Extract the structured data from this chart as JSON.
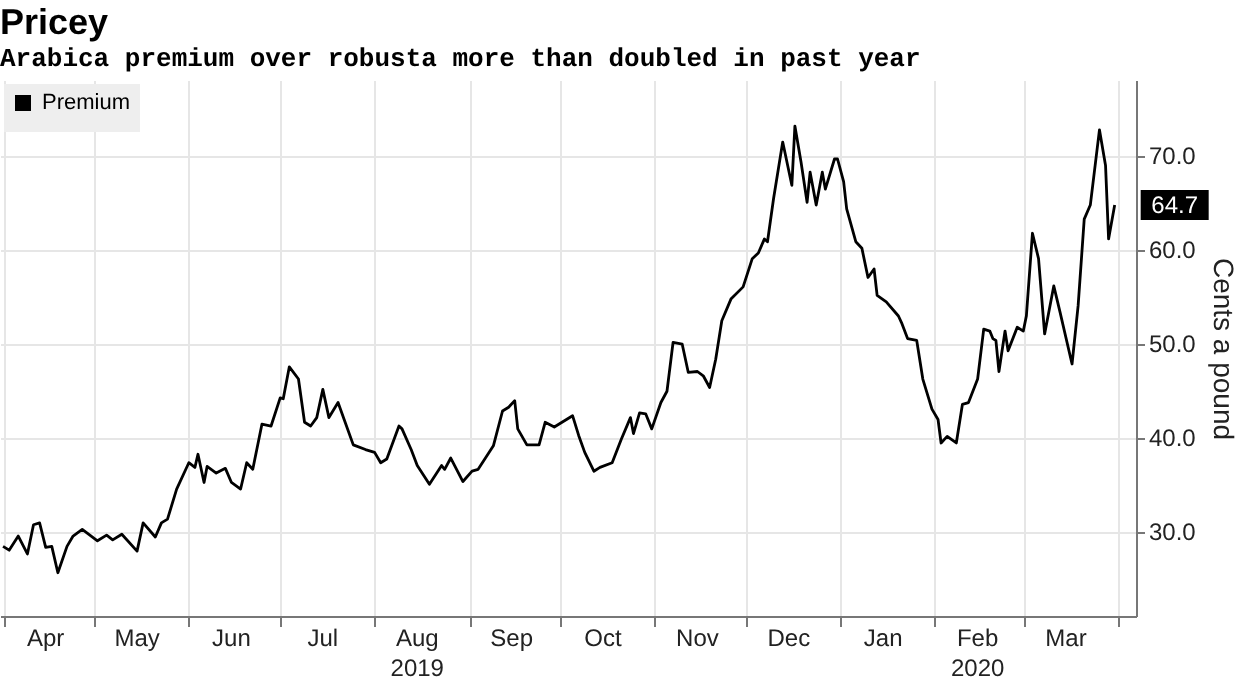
{
  "chart_data": {
    "type": "line",
    "title": "Pricey",
    "subtitle": "Arabica premium over robusta more than doubled in past year",
    "ylabel": "Cents a pound",
    "x": [
      "2019-04-01",
      "2019-04-03",
      "2019-04-06",
      "2019-04-09",
      "2019-04-11",
      "2019-04-13",
      "2019-04-15",
      "2019-04-17",
      "2019-04-19",
      "2019-04-22",
      "2019-04-24",
      "2019-04-27",
      "2019-05-02",
      "2019-05-05",
      "2019-05-07",
      "2019-05-10",
      "2019-05-15",
      "2019-05-17",
      "2019-05-21",
      "2019-05-23",
      "2019-05-25",
      "2019-05-28",
      "2019-06-01",
      "2019-06-03",
      "2019-06-04",
      "2019-06-06",
      "2019-06-07",
      "2019-06-10",
      "2019-06-13",
      "2019-06-15",
      "2019-06-18",
      "2019-06-20",
      "2019-06-22",
      "2019-06-25",
      "2019-06-28",
      "2019-07-01",
      "2019-07-02",
      "2019-07-04",
      "2019-07-07",
      "2019-07-09",
      "2019-07-11",
      "2019-07-13",
      "2019-07-15",
      "2019-07-17",
      "2019-07-20",
      "2019-07-22",
      "2019-07-25",
      "2019-07-29",
      "2019-08-01",
      "2019-08-03",
      "2019-08-05",
      "2019-08-09",
      "2019-08-10",
      "2019-08-13",
      "2019-08-15",
      "2019-08-19",
      "2019-08-23",
      "2019-08-24",
      "2019-08-26",
      "2019-08-30",
      "2019-09-02",
      "2019-09-04",
      "2019-09-09",
      "2019-09-12",
      "2019-09-14",
      "2019-09-16",
      "2019-09-17",
      "2019-09-20",
      "2019-09-24",
      "2019-09-26",
      "2019-09-29",
      "2019-10-03",
      "2019-10-05",
      "2019-10-07",
      "2019-10-09",
      "2019-10-12",
      "2019-10-14",
      "2019-10-18",
      "2019-10-21",
      "2019-10-24",
      "2019-10-25",
      "2019-10-27",
      "2019-10-29",
      "2019-10-31",
      "2019-11-03",
      "2019-11-05",
      "2019-11-07",
      "2019-11-10",
      "2019-11-12",
      "2019-11-15",
      "2019-11-17",
      "2019-11-19",
      "2019-11-21",
      "2019-11-23",
      "2019-11-26",
      "2019-11-30",
      "2019-12-03",
      "2019-12-05",
      "2019-12-07",
      "2019-12-08",
      "2019-12-10",
      "2019-12-13",
      "2019-12-16",
      "2019-12-17",
      "2019-12-19",
      "2019-12-21",
      "2019-12-22",
      "2019-12-24",
      "2019-12-26",
      "2019-12-27",
      "2019-12-30",
      "2019-12-31",
      "2020-01-02",
      "2020-01-03",
      "2020-01-06",
      "2020-01-08",
      "2020-01-10",
      "2020-01-12",
      "2020-01-13",
      "2020-01-16",
      "2020-01-20",
      "2020-01-21",
      "2020-01-23",
      "2020-01-26",
      "2020-01-28",
      "2020-01-31",
      "2020-02-02",
      "2020-02-03",
      "2020-02-05",
      "2020-02-08",
      "2020-02-10",
      "2020-02-12",
      "2020-02-15",
      "2020-02-17",
      "2020-02-19",
      "2020-02-20",
      "2020-02-21",
      "2020-02-22",
      "2020-02-24",
      "2020-02-25",
      "2020-02-28",
      "2020-03-01",
      "2020-03-02",
      "2020-03-04",
      "2020-03-06",
      "2020-03-08",
      "2020-03-11",
      "2020-03-13",
      "2020-03-17",
      "2020-03-19",
      "2020-03-21",
      "2020-03-23",
      "2020-03-26",
      "2020-03-28",
      "2020-03-29",
      "2020-03-31"
    ],
    "series": [
      {
        "name": "Premium",
        "color": "#000000",
        "values": [
          28.4,
          28.0,
          29.5,
          27.6,
          30.7,
          30.9,
          28.3,
          28.4,
          25.6,
          28.4,
          29.5,
          30.2,
          29.0,
          29.6,
          29.1,
          29.7,
          27.9,
          30.9,
          29.4,
          30.9,
          31.3,
          34.5,
          37.3,
          36.8,
          38.2,
          35.2,
          36.9,
          36.2,
          36.7,
          35.2,
          34.5,
          37.3,
          36.6,
          41.4,
          41.2,
          44.2,
          44.1,
          47.5,
          46.2,
          41.6,
          41.2,
          42.1,
          45.1,
          42.1,
          43.7,
          41.9,
          39.2,
          38.7,
          38.4,
          37.3,
          37.7,
          41.2,
          40.9,
          38.7,
          37.0,
          35.0,
          37.0,
          36.6,
          37.8,
          35.3,
          36.4,
          36.6,
          39.1,
          42.8,
          43.2,
          43.9,
          40.9,
          39.2,
          39.2,
          41.6,
          41.1,
          41.9,
          42.3,
          40.2,
          38.4,
          36.4,
          36.8,
          37.3,
          39.8,
          42.1,
          40.4,
          42.6,
          42.5,
          40.9,
          43.7,
          44.9,
          50.1,
          49.9,
          46.9,
          47.0,
          46.5,
          45.3,
          48.3,
          52.4,
          54.7,
          56.0,
          59.0,
          59.6,
          61.1,
          60.8,
          65.4,
          71.4,
          66.8,
          73.1,
          69.3,
          65.0,
          68.2,
          64.7,
          68.2,
          66.4,
          69.6,
          69.6,
          67.2,
          64.3,
          60.8,
          60.1,
          57.0,
          57.9,
          55.1,
          54.4,
          52.9,
          52.2,
          50.5,
          50.3,
          46.2,
          43.0,
          41.9,
          39.4,
          40.1,
          39.4,
          43.5,
          43.7,
          46.2,
          51.5,
          51.3,
          50.5,
          50.3,
          47.0,
          51.3,
          49.2,
          51.7,
          51.3,
          52.9,
          61.7,
          59.0,
          51.0,
          56.1,
          53.4,
          47.8,
          54.0,
          63.2,
          64.7,
          72.7,
          68.9,
          61.1,
          64.7
        ]
      }
    ],
    "xlim": [
      "2019-03-31",
      "2020-04-07"
    ],
    "xticks": [
      {
        "value": "2019-04-01",
        "label": null
      },
      {
        "value": "2019-04-15",
        "label": "Apr"
      },
      {
        "value": "2019-05-01",
        "label": null
      },
      {
        "value": "2019-05-15",
        "label": "May"
      },
      {
        "value": "2019-06-01",
        "label": null
      },
      {
        "value": "2019-06-15",
        "label": "Jun"
      },
      {
        "value": "2019-07-01",
        "label": null
      },
      {
        "value": "2019-07-15",
        "label": "Jul"
      },
      {
        "value": "2019-08-01",
        "label": null
      },
      {
        "value": "2019-08-15",
        "label": "Aug\n2019"
      },
      {
        "value": "2019-09-01",
        "label": null
      },
      {
        "value": "2019-09-15",
        "label": "Sep"
      },
      {
        "value": "2019-10-01",
        "label": null
      },
      {
        "value": "2019-10-15",
        "label": "Oct"
      },
      {
        "value": "2019-11-01",
        "label": null
      },
      {
        "value": "2019-11-15",
        "label": "Nov"
      },
      {
        "value": "2019-12-01",
        "label": null
      },
      {
        "value": "2019-12-15",
        "label": "Dec"
      },
      {
        "value": "2020-01-01",
        "label": null
      },
      {
        "value": "2020-01-15",
        "label": "Jan"
      },
      {
        "value": "2020-02-01",
        "label": null
      },
      {
        "value": "2020-02-15",
        "label": "Feb\n2020"
      },
      {
        "value": "2020-03-01",
        "label": null
      },
      {
        "value": "2020-03-15",
        "label": "Mar"
      },
      {
        "value": "2020-04-01",
        "label": null
      }
    ],
    "ylim": [
      21,
      78
    ],
    "yticks": [
      {
        "value": 30,
        "label": "30.0"
      },
      {
        "value": 40,
        "label": "40.0"
      },
      {
        "value": 50,
        "label": "50.0"
      },
      {
        "value": 60,
        "label": "60.0"
      },
      {
        "value": 70,
        "label": "70.0"
      }
    ],
    "grid": true,
    "legend": "top left",
    "annotations": [
      {
        "text": "64.7",
        "x": "2020-03-31",
        "y": 64.7
      }
    ]
  }
}
